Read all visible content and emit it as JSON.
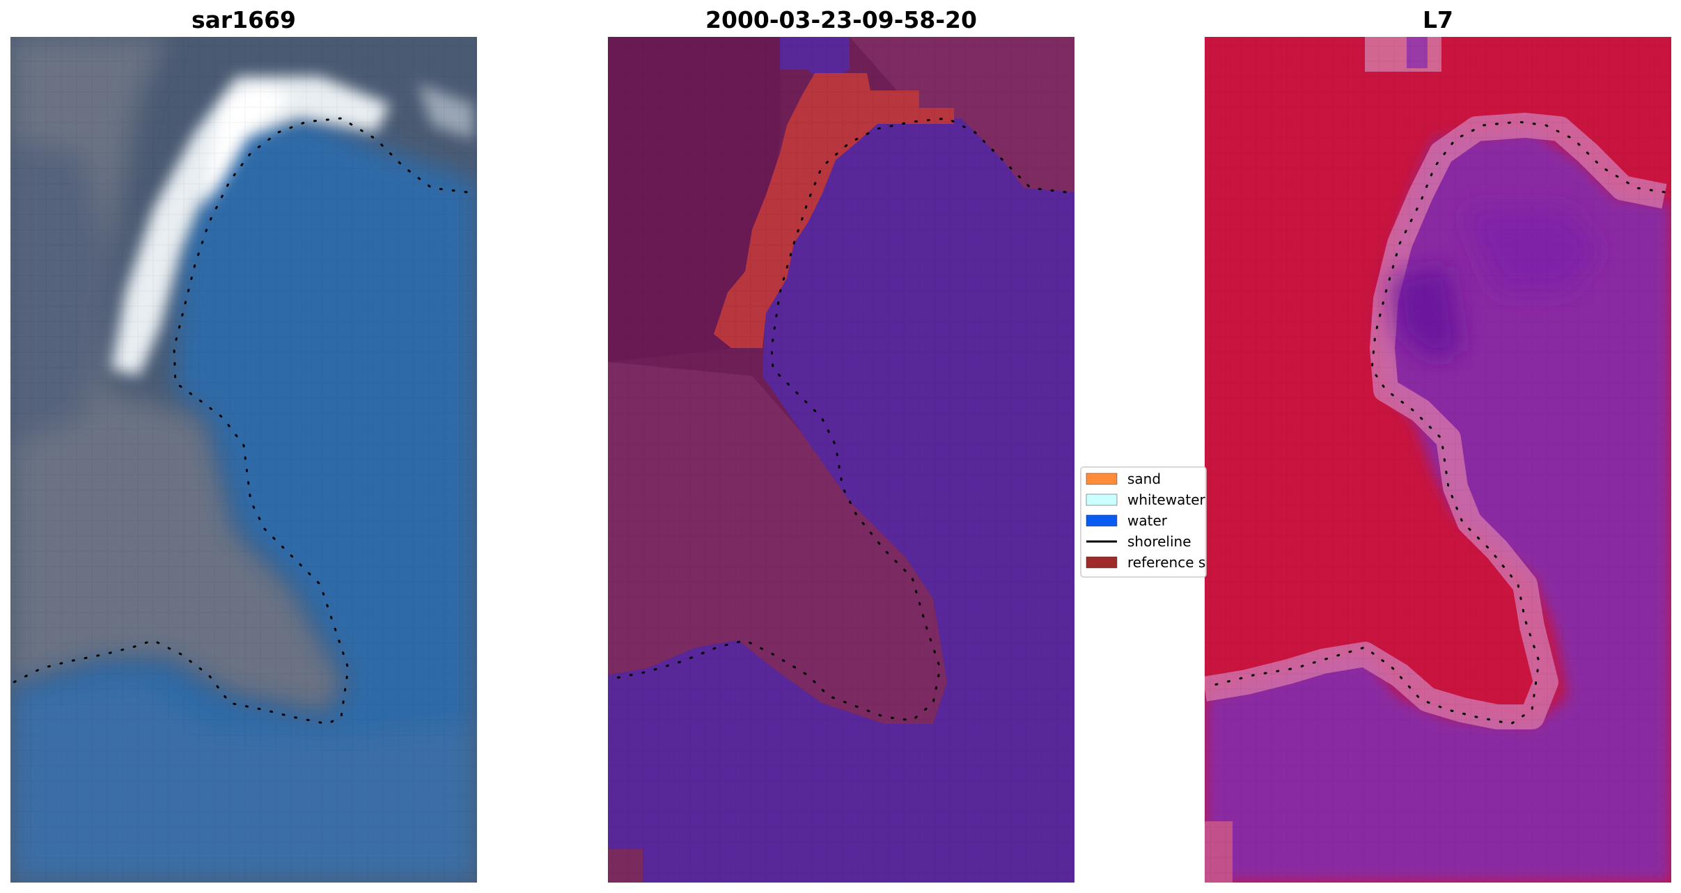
{
  "panels": [
    {
      "id": "rgb",
      "title": "sar1669"
    },
    {
      "id": "classified",
      "title": "2000-03-23-09-58-20"
    },
    {
      "id": "index",
      "title": "L7"
    }
  ],
  "legend": {
    "placement": "center-right of middle panel",
    "items": [
      {
        "label": "sand",
        "type": "patch",
        "color": "#ff8c3a"
      },
      {
        "label": "whitewater",
        "type": "patch",
        "color": "#ccffff"
      },
      {
        "label": "water",
        "type": "patch",
        "color": "#0a5cf0"
      },
      {
        "label": "shoreline",
        "type": "line",
        "color": "#000000"
      },
      {
        "label": "reference s",
        "type": "patch",
        "color": "#9e2a2a"
      }
    ]
  },
  "colors": {
    "rgb_water": "#2e6aa6",
    "rgb_land": "#5a6a82",
    "rgb_whitewater": "#f2f6f8",
    "classified_land": "#7a2a5e",
    "classified_water": "#58279a",
    "classified_reference": "#b8363e",
    "index_land": "#c8143e",
    "index_water": "#8a2aa2",
    "index_edge": "#d070a8",
    "shoreline": "#000000"
  }
}
